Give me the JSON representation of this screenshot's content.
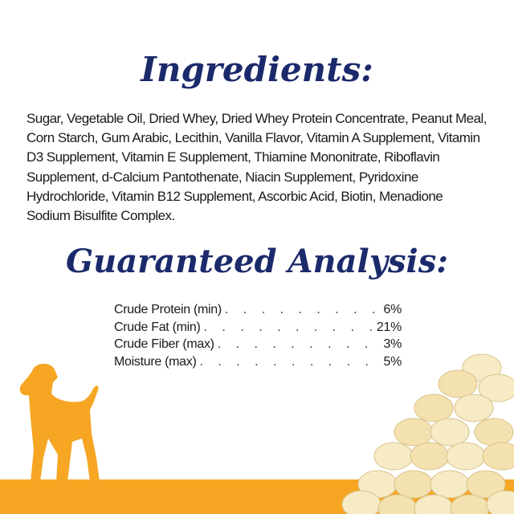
{
  "ingredients": {
    "title": "Ingredients:",
    "lines": [
      "Sugar, Vegetable Oil, Dried Whey, Dried Whey Protein Concentrate, Peanut Meal,",
      "Corn Starch, Gum Arabic, Lecithin, Vanilla Flavor, Vitamin A Supplement, Vitamin",
      "D3 Supplement, Vitamin E Supplement, Thiamine Mononitrate, Riboflavin",
      "Supplement, d-Calcium Pantothenate, Niacin Supplement, Pyridoxine",
      "Hydrochloride, Vitamin B12 Supplement, Ascorbic Acid, Biotin, Menadione",
      "Sodium Bisulfite Complex."
    ]
  },
  "analysis": {
    "title": "Guaranteed Analysis:",
    "rows": [
      {
        "label": "Crude Protein (min)",
        "value": "6%"
      },
      {
        "label": "Crude Fat (min)",
        "value": "21%"
      },
      {
        "label": "Crude Fiber (max)",
        "value": "3%"
      },
      {
        "label": "Moisture (max)",
        "value": "5%"
      }
    ]
  },
  "colors": {
    "title": "#1b2a6b",
    "accent": "#f6a623",
    "chips": "#f3e2b0"
  },
  "icons": {
    "dog": "dog-silhouette-icon",
    "chips": "chips-image"
  }
}
